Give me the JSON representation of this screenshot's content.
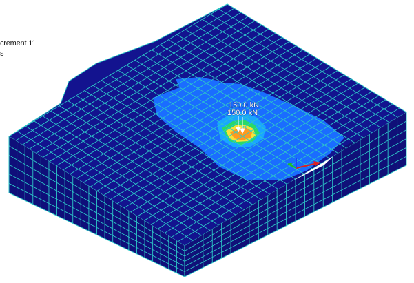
{
  "viewport": {
    "info_lines": [
      "crement 11",
      "s"
    ],
    "load_labels": [
      "150.0 kN",
      "150.0 kN"
    ]
  },
  "colors": {
    "mesh_fill": "#13138f",
    "mesh_side_left": "#0f0f7a",
    "mesh_side_right": "#101078",
    "mesh_line": "#2ec8c8",
    "contour_light": "#1a6dff",
    "contour_mid": "#19a6ff",
    "contour_green": "#29d96a",
    "contour_yellow": "#f5e23a",
    "contour_orange": "#ff9a1f",
    "axis_x": "#e02020",
    "axis_y": "#20c020",
    "axis_z": "#2040ff"
  }
}
